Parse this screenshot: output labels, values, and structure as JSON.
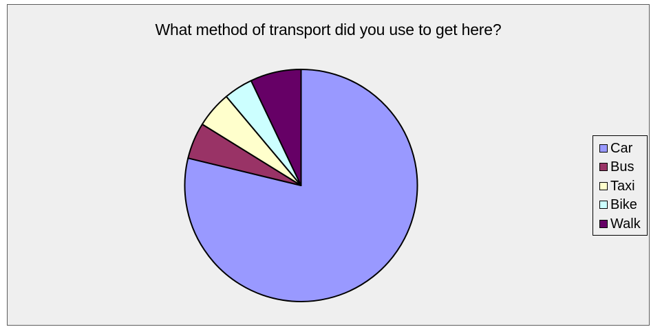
{
  "chart_data": {
    "type": "pie",
    "title": "What method of transport did you use to get here?",
    "categories": [
      "Car",
      "Bus",
      "Taxi",
      "Bike",
      "Walk"
    ],
    "values": [
      78,
      5,
      5,
      4,
      7
    ],
    "colors": [
      "#9999ff",
      "#993366",
      "#ffffcc",
      "#ccffff",
      "#660066"
    ],
    "legend_position": "right"
  }
}
